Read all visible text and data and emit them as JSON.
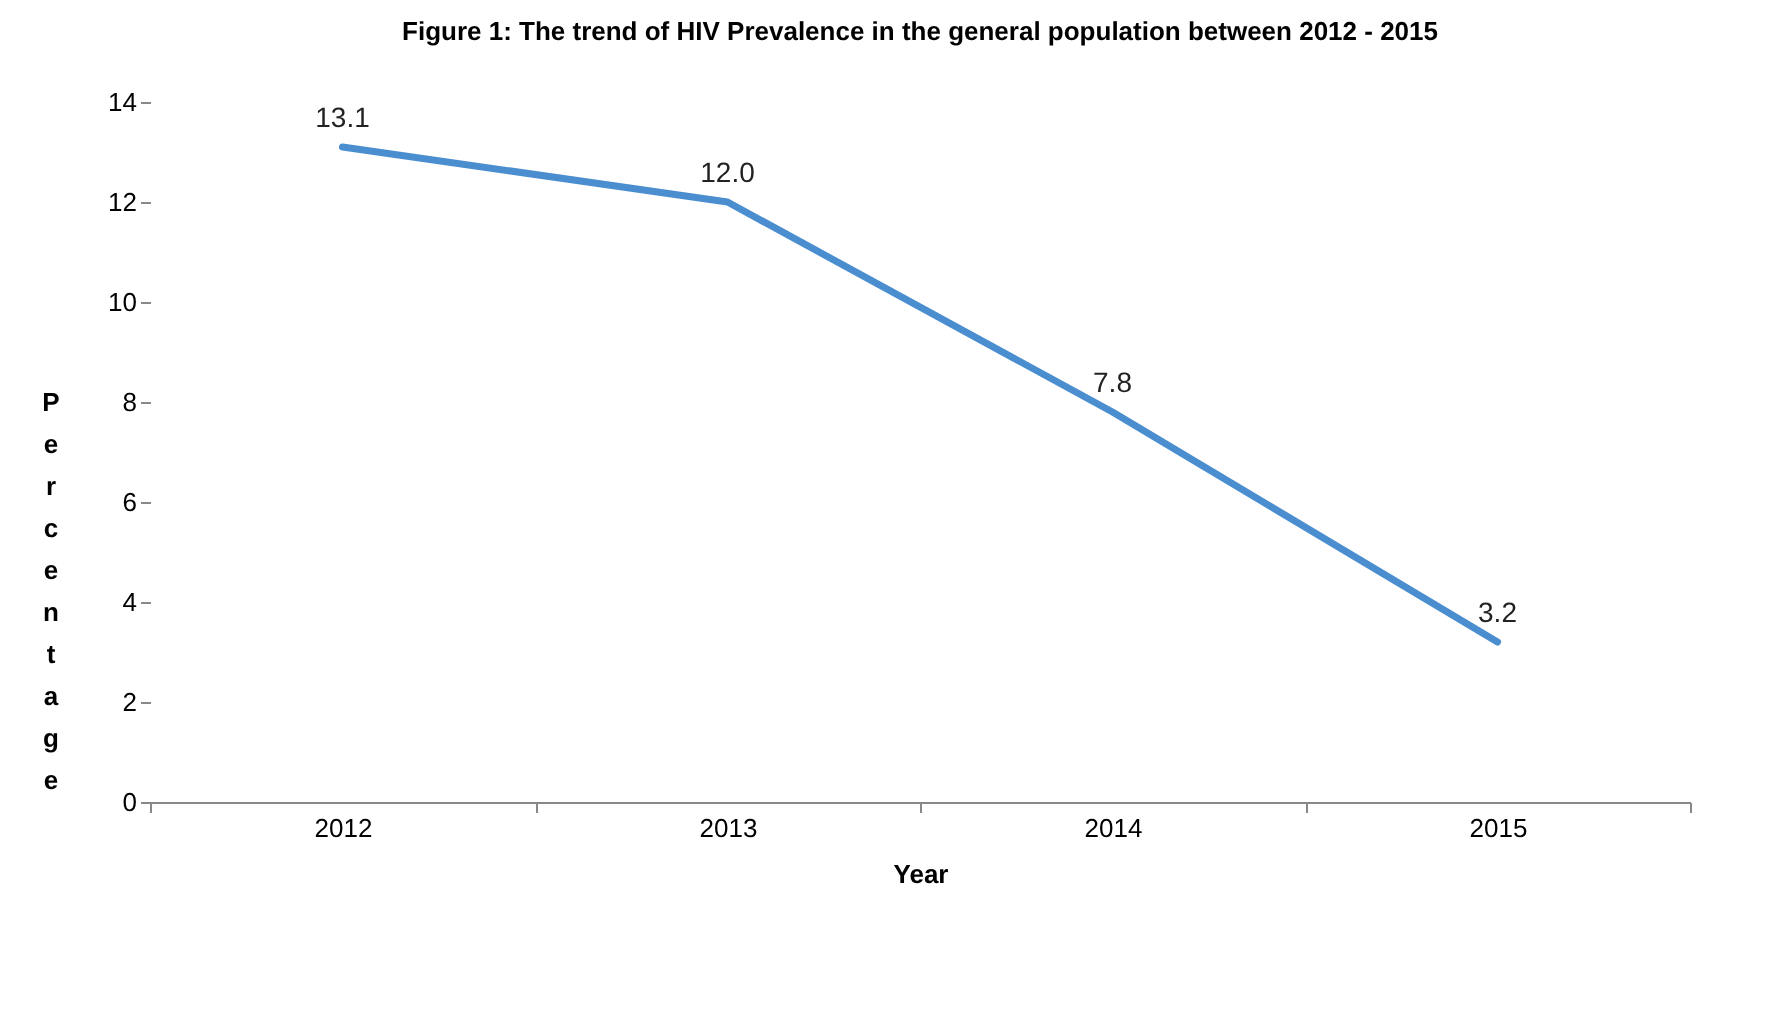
{
  "chart_data": {
    "type": "line",
    "title": "Figure 1: The trend of HIV Prevalence in the general population  between 2012 - 2015",
    "xlabel": "Year",
    "ylabel": "Percentage",
    "categories": [
      "2012",
      "2013",
      "2014",
      "2015"
    ],
    "series": [
      {
        "color": "#4a8ed0",
        "values": [
          13.1,
          12.0,
          7.8,
          3.2
        ],
        "value_labels": [
          "13.1",
          "12.0",
          "7.8",
          "3.2"
        ]
      }
    ],
    "ylim": [
      0,
      14
    ],
    "yticks": [
      0,
      2,
      4,
      6,
      8,
      10,
      12,
      14
    ],
    "grid": false,
    "legend": false,
    "marker": "none",
    "line_style": "solid"
  }
}
